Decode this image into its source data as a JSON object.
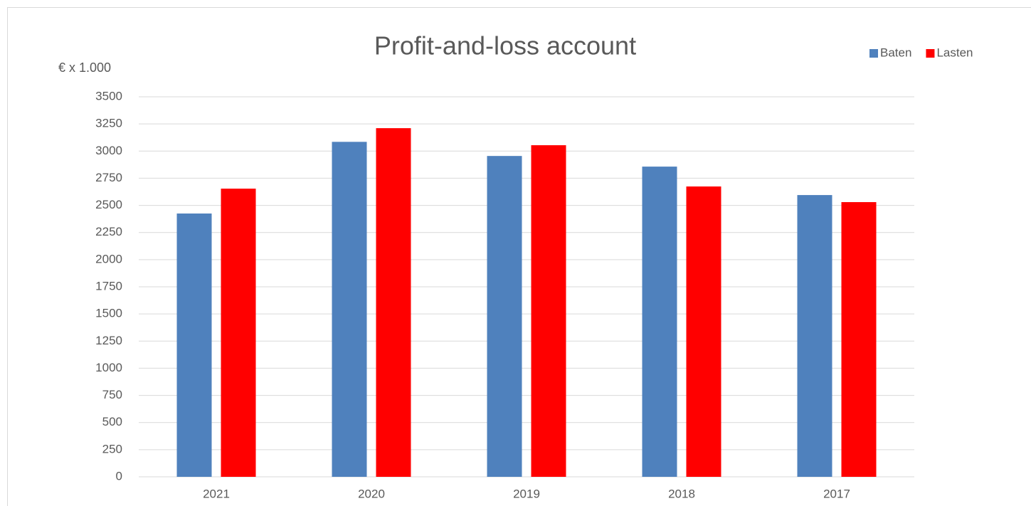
{
  "chart_data": {
    "type": "bar",
    "title": "Profit-and-loss account",
    "y_label": "€ x 1.000",
    "categories": [
      "2021",
      "2020",
      "2019",
      "2018",
      "2017"
    ],
    "series": [
      {
        "name": "Baten",
        "color": "#4f81bd",
        "values": [
          2425,
          3085,
          2955,
          2857,
          2595
        ]
      },
      {
        "name": "Lasten",
        "color": "#ff0000",
        "values": [
          2654,
          3211,
          3054,
          2674,
          2530
        ]
      }
    ],
    "ylim": [
      0,
      3500
    ],
    "yticks": [
      0,
      250,
      500,
      750,
      1000,
      1250,
      1500,
      1750,
      2000,
      2250,
      2500,
      2750,
      3000,
      3250,
      3500
    ],
    "grid": true,
    "legend": "top-right"
  }
}
